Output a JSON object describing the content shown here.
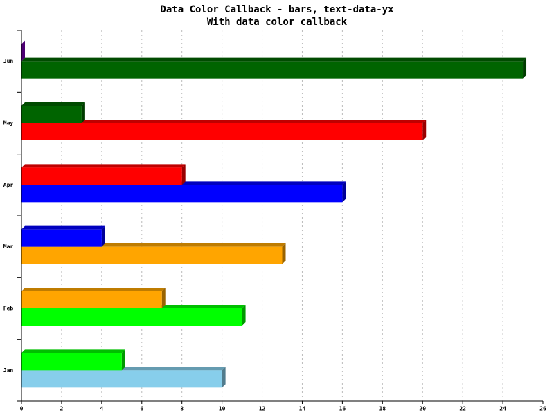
{
  "chart_data": {
    "type": "bar3d",
    "orientation": "horizontal",
    "title": "Data Color Callback - bars, text-data-yx",
    "subtitle": "With data color callback",
    "categories": [
      "Jan",
      "Feb",
      "Mar",
      "Apr",
      "May",
      "Jun"
    ],
    "series": [
      {
        "colors": [
          "#87ceeb",
          "#00ff00",
          "#ffa500",
          "#0000ff",
          "#ff0000",
          "#006400"
        ],
        "values": [
          10,
          11,
          13,
          16,
          20,
          25
        ]
      },
      {
        "colors": [
          "#00ff00",
          "#ffa500",
          "#0000ff",
          "#ff0000",
          "#006400",
          "#8000c0"
        ],
        "values": [
          5,
          7,
          4,
          8,
          3,
          0
        ]
      }
    ],
    "xlim": [
      0,
      26
    ],
    "xticks": [
      0,
      2,
      4,
      6,
      8,
      10,
      12,
      14,
      16,
      18,
      20,
      22,
      24,
      26
    ],
    "grid": true
  }
}
